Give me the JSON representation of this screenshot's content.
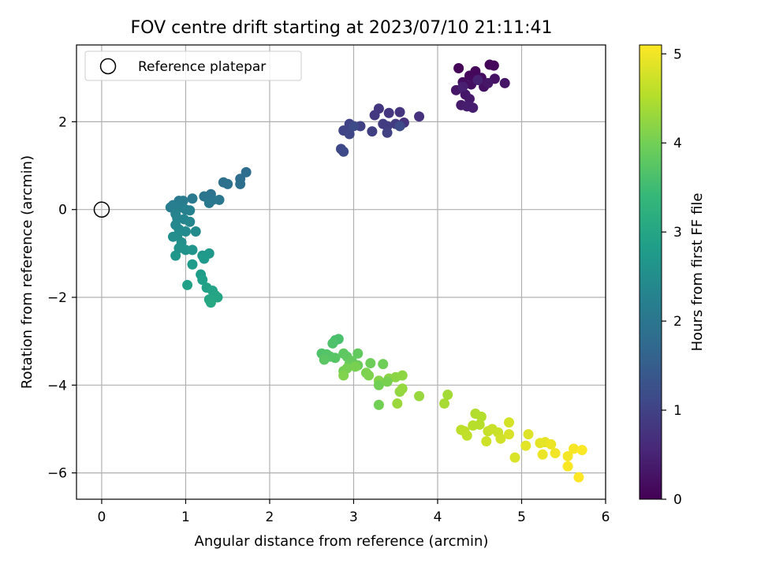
{
  "chart_data": {
    "type": "scatter",
    "title": "FOV centre drift starting at 2023/07/10 21:11:41",
    "xlabel": "Angular distance from reference (arcmin)",
    "ylabel": "Rotation from reference (arcmin)",
    "xlim": [
      -0.3,
      6.0
    ],
    "ylim": [
      -6.6,
      3.75
    ],
    "xticks": [
      0,
      1,
      2,
      3,
      4,
      5,
      6
    ],
    "yticks": [
      -6,
      -4,
      -2,
      0,
      2
    ],
    "xtick_labels": [
      "0",
      "1",
      "2",
      "3",
      "4",
      "5",
      "6"
    ],
    "ytick_labels": [
      "−6",
      "−4",
      "−2",
      "0",
      "2"
    ],
    "grid": true,
    "legend": {
      "placement": "top-left",
      "entries": [
        "Reference platepar"
      ]
    },
    "colorbar": {
      "label": "Hours from first FF file",
      "range": [
        0,
        5.1
      ],
      "ticks": [
        0,
        1,
        2,
        3,
        4,
        5
      ],
      "tick_labels": [
        "0",
        "1",
        "2",
        "3",
        "4",
        "5"
      ],
      "colormap": "viridis"
    },
    "reference_point": {
      "x": 0,
      "y": 0
    },
    "colors": {
      "viridis": [
        "#440154",
        "#482878",
        "#3e4a89",
        "#31688e",
        "#26828e",
        "#1f9e89",
        "#35b779",
        "#6ece58",
        "#b5de2b",
        "#fde725"
      ],
      "grid": "#b0b0b0",
      "axes": "#000000"
    },
    "points": [
      [
        4.25,
        3.22,
        0.05
      ],
      [
        4.45,
        3.15,
        0.08
      ],
      [
        4.62,
        3.3,
        0.06
      ],
      [
        4.67,
        3.28,
        0.1
      ],
      [
        4.38,
        3.05,
        0.12
      ],
      [
        4.52,
        3.0,
        0.15
      ],
      [
        4.3,
        2.9,
        0.18
      ],
      [
        4.4,
        2.85,
        0.2
      ],
      [
        4.55,
        2.8,
        0.22
      ],
      [
        4.68,
        2.98,
        0.25
      ],
      [
        4.8,
        2.88,
        0.28
      ],
      [
        4.22,
        2.72,
        0.3
      ],
      [
        4.33,
        2.62,
        0.32
      ],
      [
        4.38,
        2.52,
        0.35
      ],
      [
        4.28,
        2.38,
        0.38
      ],
      [
        4.35,
        2.35,
        0.4
      ],
      [
        4.42,
        2.32,
        0.42
      ],
      [
        4.3,
        2.8,
        0.45
      ],
      [
        4.48,
        2.95,
        0.48
      ],
      [
        4.6,
        2.88,
        0.3
      ],
      [
        3.78,
        2.12,
        0.72
      ],
      [
        3.6,
        1.98,
        0.75
      ],
      [
        3.55,
        2.22,
        0.78
      ],
      [
        3.42,
        2.2,
        0.8
      ],
      [
        3.3,
        2.3,
        0.82
      ],
      [
        3.25,
        2.15,
        0.85
      ],
      [
        3.5,
        1.95,
        0.88
      ],
      [
        3.4,
        1.9,
        0.9
      ],
      [
        3.35,
        1.95,
        0.92
      ],
      [
        3.22,
        1.78,
        0.95
      ],
      [
        3.4,
        1.75,
        0.98
      ],
      [
        3.08,
        1.9,
        1.0
      ],
      [
        2.95,
        1.95,
        1.02
      ],
      [
        2.88,
        1.8,
        1.05
      ],
      [
        2.95,
        1.72,
        1.08
      ],
      [
        2.85,
        1.38,
        1.1
      ],
      [
        2.88,
        1.32,
        1.12
      ],
      [
        3.0,
        1.9,
        1.15
      ],
      [
        3.55,
        1.9,
        1.18
      ],
      [
        1.72,
        0.85,
        1.8
      ],
      [
        1.65,
        0.7,
        1.82
      ],
      [
        1.65,
        0.58,
        1.85
      ],
      [
        1.45,
        0.62,
        1.88
      ],
      [
        1.5,
        0.58,
        1.9
      ],
      [
        1.3,
        0.35,
        1.92
      ],
      [
        1.22,
        0.3,
        1.95
      ],
      [
        1.25,
        0.28,
        1.98
      ],
      [
        1.32,
        0.22,
        2.0
      ],
      [
        1.4,
        0.22,
        2.02
      ],
      [
        1.28,
        0.15,
        2.05
      ],
      [
        1.08,
        0.25,
        2.08
      ],
      [
        0.92,
        0.2,
        2.1
      ],
      [
        0.97,
        0.2,
        2.12
      ],
      [
        0.85,
        0.1,
        2.15
      ],
      [
        0.82,
        0.05,
        2.18
      ],
      [
        0.95,
        0.05,
        2.2
      ],
      [
        1.0,
        0.0,
        2.22
      ],
      [
        1.05,
        -0.02,
        2.25
      ],
      [
        0.88,
        -0.1,
        2.28
      ],
      [
        0.9,
        -0.2,
        2.3
      ],
      [
        0.98,
        -0.22,
        2.32
      ],
      [
        1.05,
        -0.28,
        2.35
      ],
      [
        0.88,
        -0.35,
        2.38
      ],
      [
        0.92,
        -0.45,
        2.4
      ],
      [
        1.0,
        -0.5,
        2.42
      ],
      [
        1.12,
        -0.5,
        2.45
      ],
      [
        0.9,
        -0.6,
        2.48
      ],
      [
        0.85,
        -0.62,
        2.5
      ],
      [
        0.95,
        -0.75,
        2.55
      ],
      [
        0.92,
        -0.88,
        2.6
      ],
      [
        1.0,
        -0.92,
        2.62
      ],
      [
        1.08,
        -0.92,
        2.65
      ],
      [
        0.88,
        -1.05,
        2.68
      ],
      [
        1.2,
        -1.05,
        2.7
      ],
      [
        1.28,
        -1.0,
        2.72
      ],
      [
        1.22,
        -1.12,
        2.75
      ],
      [
        1.08,
        -1.25,
        2.78
      ],
      [
        1.18,
        -1.48,
        2.82
      ],
      [
        1.2,
        -1.6,
        2.85
      ],
      [
        1.02,
        -1.72,
        2.88
      ],
      [
        1.25,
        -1.78,
        2.9
      ],
      [
        1.32,
        -1.85,
        2.95
      ],
      [
        1.35,
        -1.95,
        2.98
      ],
      [
        1.38,
        -2.0,
        3.0
      ],
      [
        1.28,
        -2.05,
        3.02
      ],
      [
        1.3,
        -2.12,
        3.05
      ],
      [
        2.78,
        -2.98,
        3.6
      ],
      [
        2.82,
        -2.95,
        3.62
      ],
      [
        2.75,
        -3.05,
        3.65
      ],
      [
        2.62,
        -3.28,
        3.68
      ],
      [
        2.68,
        -3.3,
        3.7
      ],
      [
        2.72,
        -3.35,
        3.72
      ],
      [
        2.78,
        -3.38,
        3.75
      ],
      [
        2.65,
        -3.42,
        3.78
      ],
      [
        2.88,
        -3.28,
        3.8
      ],
      [
        2.92,
        -3.35,
        3.82
      ],
      [
        3.05,
        -3.28,
        3.85
      ],
      [
        2.98,
        -3.45,
        3.88
      ],
      [
        2.95,
        -3.52,
        3.9
      ],
      [
        3.05,
        -3.55,
        3.92
      ],
      [
        3.2,
        -3.5,
        3.95
      ],
      [
        3.35,
        -3.52,
        3.97
      ],
      [
        2.88,
        -3.68,
        4.0
      ],
      [
        2.92,
        -3.62,
        4.02
      ],
      [
        3.02,
        -3.58,
        4.05
      ],
      [
        3.15,
        -3.72,
        4.08
      ],
      [
        3.18,
        -3.78,
        4.1
      ],
      [
        2.88,
        -3.78,
        4.12
      ],
      [
        3.3,
        -3.9,
        4.15
      ],
      [
        3.42,
        -3.85,
        4.18
      ],
      [
        3.5,
        -3.82,
        4.2
      ],
      [
        3.58,
        -3.78,
        4.22
      ],
      [
        3.3,
        -4.0,
        4.0
      ],
      [
        3.4,
        -3.92,
        4.05
      ],
      [
        3.55,
        -4.15,
        4.25
      ],
      [
        3.58,
        -4.08,
        4.28
      ],
      [
        3.78,
        -4.25,
        4.3
      ],
      [
        3.52,
        -4.42,
        4.32
      ],
      [
        3.3,
        -4.45,
        4.0
      ],
      [
        4.12,
        -4.22,
        4.4
      ],
      [
        4.08,
        -4.42,
        4.42
      ],
      [
        4.45,
        -4.65,
        4.5
      ],
      [
        4.52,
        -4.72,
        4.52
      ],
      [
        4.42,
        -4.92,
        4.55
      ],
      [
        4.28,
        -5.02,
        4.58
      ],
      [
        4.32,
        -5.05,
        4.6
      ],
      [
        4.35,
        -5.15,
        4.62
      ],
      [
        4.6,
        -5.05,
        4.65
      ],
      [
        4.65,
        -5.0,
        4.68
      ],
      [
        4.72,
        -5.08,
        4.7
      ],
      [
        4.58,
        -5.28,
        4.72
      ],
      [
        4.75,
        -5.22,
        4.75
      ],
      [
        4.85,
        -4.85,
        4.78
      ],
      [
        4.85,
        -5.12,
        4.8
      ],
      [
        4.92,
        -5.65,
        4.82
      ],
      [
        5.08,
        -5.12,
        4.85
      ],
      [
        5.05,
        -5.38,
        4.88
      ],
      [
        5.22,
        -5.32,
        4.9
      ],
      [
        5.28,
        -5.3,
        4.92
      ],
      [
        5.25,
        -5.58,
        4.95
      ],
      [
        5.35,
        -5.35,
        4.97
      ],
      [
        5.4,
        -5.55,
        5.0
      ],
      [
        5.55,
        -5.62,
        5.02
      ],
      [
        5.62,
        -5.45,
        5.05
      ],
      [
        5.55,
        -5.85,
        5.07
      ],
      [
        5.72,
        -5.48,
        5.08
      ],
      [
        5.68,
        -6.1,
        5.1
      ],
      [
        4.5,
        -4.9,
        4.55
      ]
    ]
  }
}
